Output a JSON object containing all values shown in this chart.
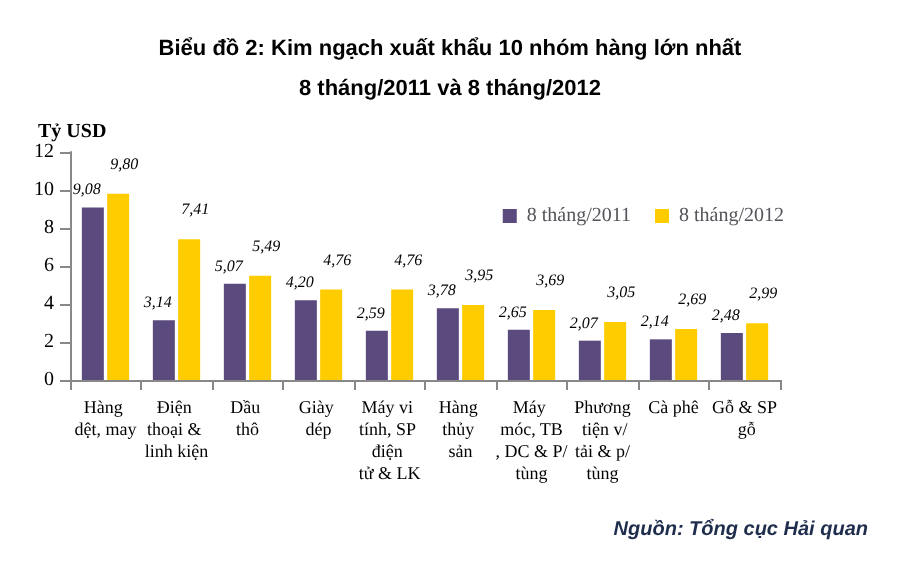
{
  "chart_data": {
    "type": "bar",
    "title": "Biểu đồ 2: Kim ngạch xuất khẩu 10 nhóm hàng lớn nhất",
    "subtitle": "8 tháng/2011 và 8 tháng/2012",
    "ylabel": "Tỷ USD",
    "categories": [
      "Hàng dệt, may",
      "Điện thoại & linh kiện",
      "Dầu thô",
      "Giày dép",
      "Máy vi tính, SP điện tử & LK",
      "Hàng thủy sản",
      "Máy móc, TB, DC & P/tùng",
      "Phương tiện v/tải & p/tùng",
      "Cà phê",
      "Gỗ & SP gỗ"
    ],
    "series": [
      {
        "name": "8 tháng/2011",
        "color": "#5b4a7e",
        "values": [
          9.08,
          3.14,
          5.07,
          4.2,
          2.59,
          3.78,
          2.65,
          2.07,
          2.14,
          2.48
        ],
        "value_labels": [
          "9,08",
          "3,14",
          "5,07",
          "4,20",
          "2,59",
          "3,78",
          "2,65",
          "2,07",
          "2,14",
          "2,48"
        ]
      },
      {
        "name": "8 tháng/2012",
        "color": "#ffcc00",
        "values": [
          9.8,
          7.41,
          5.49,
          4.76,
          4.76,
          3.95,
          3.69,
          3.05,
          2.69,
          2.99
        ],
        "value_labels": [
          "9,80",
          "7,41",
          "5,49",
          "4,76",
          "4,76",
          "3,95",
          "3,69",
          "3,05",
          "2,69",
          "2,99"
        ]
      }
    ],
    "ylim": [
      0,
      12
    ],
    "yticks": [
      0,
      2,
      4,
      6,
      8,
      10,
      12
    ],
    "grid": false,
    "legend": "top right",
    "annotations": [
      "Nguồn: Tổng cục Hải quan"
    ]
  }
}
